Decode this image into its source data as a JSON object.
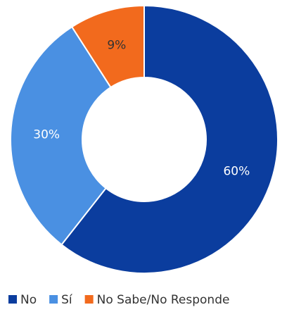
{
  "chart_data": {
    "type": "donut",
    "categories": [
      "No",
      "Sí",
      "No Sabe/No Responde"
    ],
    "values": [
      60,
      30,
      9
    ],
    "value_labels": [
      "60%",
      "30%",
      "9%"
    ],
    "colors": [
      "#0b3d9e",
      "#4a90e2",
      "#f26a1d"
    ],
    "label_colors": [
      "#ffffff",
      "#ffffff",
      "#333333"
    ],
    "legend": "bottom"
  }
}
